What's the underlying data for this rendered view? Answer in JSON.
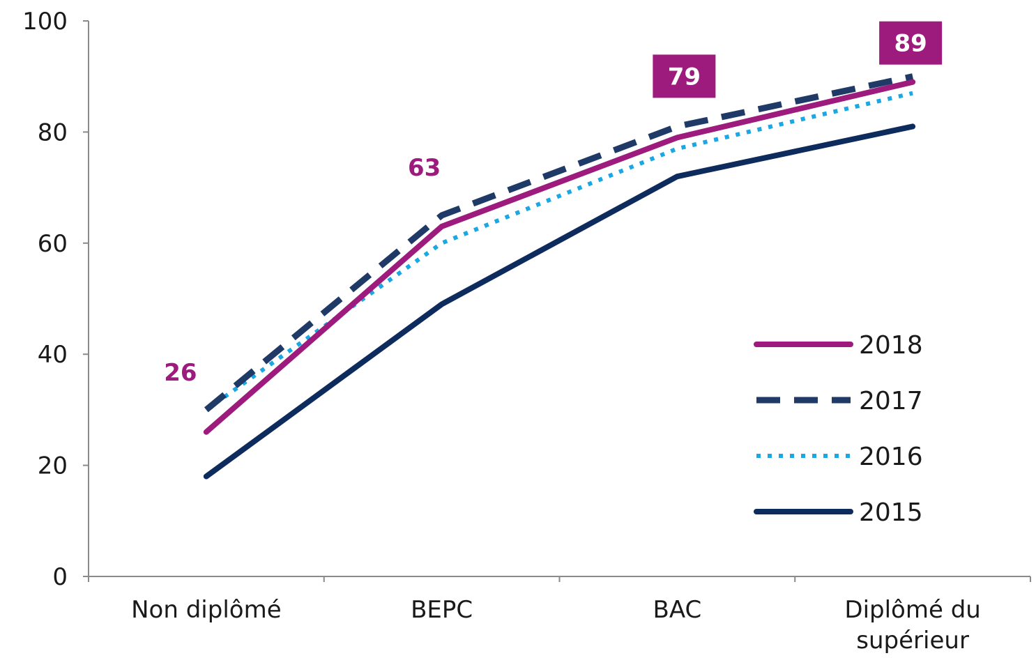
{
  "chart_data": {
    "type": "line",
    "title": "",
    "xlabel": "",
    "ylabel": "",
    "ylim": [
      0,
      100
    ],
    "yticks": [
      0,
      20,
      40,
      60,
      80,
      100
    ],
    "categories": [
      [
        "Non diplômé"
      ],
      [
        "BEPC"
      ],
      [
        "BAC"
      ],
      [
        "Diplômé du",
        "supérieur"
      ]
    ],
    "grid": false,
    "legend_position": "right",
    "series": [
      {
        "name": "2018",
        "values": [
          26,
          63,
          79,
          89
        ],
        "color": "#9c1b7c",
        "style": "solid"
      },
      {
        "name": "2017",
        "values": [
          30,
          65,
          81,
          90
        ],
        "color": "#1f3a66",
        "style": "dashed"
      },
      {
        "name": "2016",
        "values": [
          30,
          60,
          77,
          87
        ],
        "color": "#1ba7e3",
        "style": "dotted"
      },
      {
        "name": "2015",
        "values": [
          18,
          49,
          72,
          81
        ],
        "color": "#0d2b5c",
        "style": "solid"
      }
    ],
    "annotations": [
      {
        "series": "2018",
        "category_index": 0,
        "text": "26",
        "boxed": false
      },
      {
        "series": "2018",
        "category_index": 1,
        "text": "63",
        "boxed": false
      },
      {
        "series": "2018",
        "category_index": 2,
        "text": "79",
        "boxed": true
      },
      {
        "series": "2018",
        "category_index": 3,
        "text": "89",
        "boxed": true
      }
    ],
    "label_color": "#9c1b7c",
    "box_text_color": "#ffffff"
  }
}
